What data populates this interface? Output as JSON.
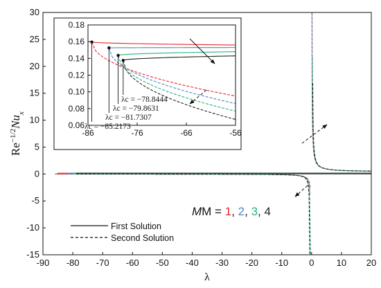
{
  "chart_data": {
    "type": "line",
    "xlabel": "λ",
    "ylabel": "Re_x^{-1/2} Nu_x",
    "xlim": [
      -90,
      20
    ],
    "ylim": [
      -15,
      30
    ],
    "xticks": [
      "-90",
      "-80",
      "-70",
      "-60",
      "-50",
      "-40",
      "-30",
      "-20",
      "-10",
      "0",
      "10",
      "20"
    ],
    "yticks": [
      "-15",
      "-10",
      "-5",
      "0",
      "5",
      "10",
      "15",
      "20",
      "25",
      "30"
    ],
    "parameter_label": "M = ",
    "parameter_values": [
      "1",
      "2",
      "3",
      "4"
    ],
    "legend": {
      "placement": "bottom-left",
      "entries": [
        {
          "label": "First Solution",
          "style": "solid"
        },
        {
          "label": "Second Solution",
          "style": "dashed"
        }
      ]
    },
    "series": [
      {
        "name": "1",
        "color": "#e8262c",
        "lambda_c": -85.2173,
        "nu_c": 0.1596,
        "upper_end": 0.156,
        "lower_end": 0.095
      },
      {
        "name": "2",
        "color": "#4a86c8",
        "lambda_c": -81.7307,
        "nu_c": 0.1526,
        "upper_end": 0.153,
        "lower_end": 0.086
      },
      {
        "name": "3",
        "color": "#22b37a",
        "lambda_c": -79.8631,
        "nu_c": 0.1436,
        "upper_end": 0.148,
        "lower_end": 0.077
      },
      {
        "name": "4",
        "color": "#222222",
        "lambda_c": -78.8444,
        "nu_c": 0.1376,
        "upper_end": 0.143,
        "lower_end": 0.067
      }
    ],
    "inset": {
      "xlim": [
        -86,
        -56
      ],
      "ylim": [
        0.06,
        0.18
      ],
      "xticks": [
        "-86",
        "-76",
        "-66",
        "-56"
      ],
      "yticks": [
        "0.06",
        "0.08",
        "0.10",
        "0.12",
        "0.14",
        "0.16",
        "0.18"
      ],
      "annotations": [
        {
          "text": "λc = −78.8444",
          "series": "4"
        },
        {
          "text": "λc = −79.8631",
          "series": "3"
        },
        {
          "text": "λc = −81.7307",
          "series": "2"
        },
        {
          "text": "λc = −85.2173",
          "series": "1"
        }
      ]
    }
  }
}
